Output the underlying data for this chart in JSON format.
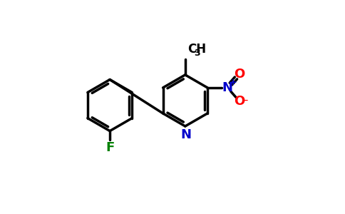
{
  "bg_color": "#ffffff",
  "bond_color": "#000000",
  "N_color": "#0000cc",
  "F_color": "#008000",
  "O_color": "#ff0000",
  "lw": 2.5,
  "figsize": [
    4.84,
    3.0
  ],
  "dpi": 100,
  "xlim": [
    0,
    9.5
  ],
  "ylim": [
    0,
    5.9
  ]
}
